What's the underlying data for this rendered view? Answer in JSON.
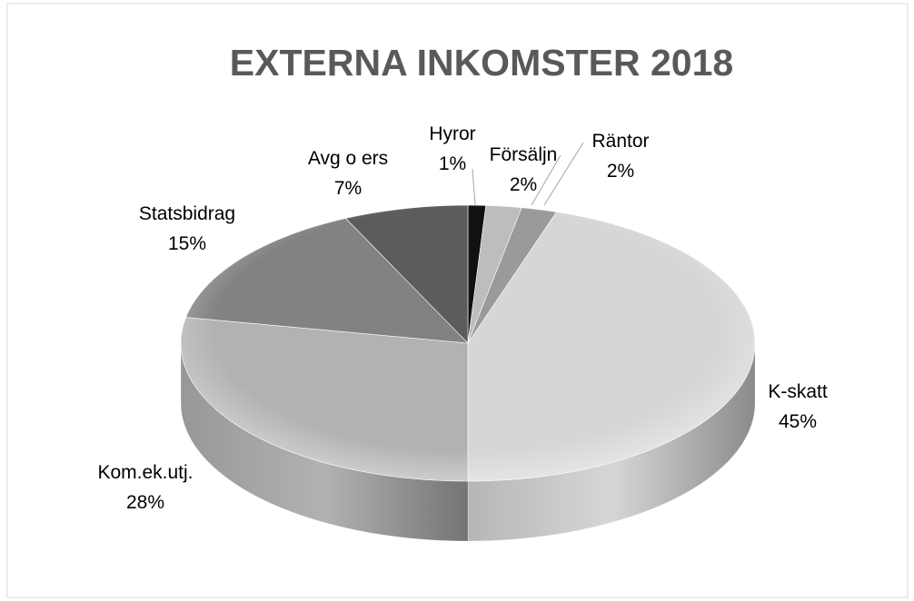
{
  "chart_data": {
    "type": "pie",
    "title": "EXTERNA INKOMSTER 2018",
    "categories": [
      "Hyror",
      "Försäljn",
      "Räntor",
      "K-skatt",
      "Kom.ek.utj.",
      "Statsbidrag",
      "Avg o ers"
    ],
    "values": [
      1,
      2,
      2,
      45,
      28,
      15,
      7
    ],
    "value_labels": [
      "1%",
      "2%",
      "2%",
      "45%",
      "28%",
      "15%",
      "7%"
    ],
    "colors": [
      "#111111",
      "#bdbdbd",
      "#9a9a9a",
      "#d6d6d6",
      "#b2b2b2",
      "#828282",
      "#5c5c5c"
    ]
  }
}
